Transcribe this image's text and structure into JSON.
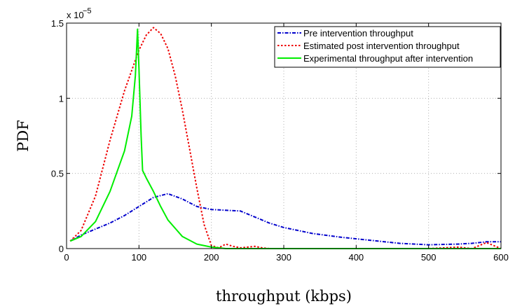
{
  "chart_data": {
    "type": "line",
    "title": "",
    "xlabel": "throughput (kbps)",
    "ylabel": "PDF",
    "y_multiplier": "x 10",
    "y_exponent": "−5",
    "xlim": [
      0,
      600
    ],
    "ylim": [
      0,
      1.5
    ],
    "xticks": [
      "0",
      "100",
      "200",
      "300",
      "400",
      "500",
      "600"
    ],
    "yticks": [
      "0",
      "0.5",
      "1",
      "1.5"
    ],
    "grid": true,
    "legend_position": "top-right",
    "series": [
      {
        "name": "Pre intervention throughput",
        "color": "#0000cc",
        "style": "dashdot",
        "x": [
          5,
          20,
          40,
          60,
          80,
          100,
          120,
          140,
          160,
          180,
          200,
          220,
          240,
          260,
          280,
          300,
          340,
          380,
          420,
          460,
          500,
          540,
          560,
          580,
          600
        ],
        "y": [
          0.05,
          0.09,
          0.13,
          0.17,
          0.22,
          0.28,
          0.34,
          0.365,
          0.33,
          0.28,
          0.26,
          0.255,
          0.25,
          0.21,
          0.17,
          0.14,
          0.1,
          0.075,
          0.055,
          0.035,
          0.025,
          0.03,
          0.035,
          0.045,
          0.045
        ]
      },
      {
        "name": "Estimated post intervention throughput",
        "color": "#ee0000",
        "style": "dotted",
        "x": [
          5,
          20,
          40,
          60,
          80,
          100,
          110,
          120,
          130,
          140,
          150,
          160,
          170,
          180,
          190,
          200,
          210,
          220,
          230,
          240,
          260,
          270,
          280,
          300,
          400,
          500,
          540,
          560,
          580,
          600
        ],
        "y": [
          0.05,
          0.12,
          0.35,
          0.72,
          1.05,
          1.32,
          1.42,
          1.47,
          1.43,
          1.33,
          1.15,
          0.92,
          0.66,
          0.4,
          0.16,
          0.02,
          0.005,
          0.03,
          0.015,
          0.005,
          0.015,
          0.005,
          0.0,
          0.0,
          0.0,
          0.0,
          0.01,
          0.0,
          0.04,
          0.0
        ]
      },
      {
        "name": "Experimental throughput after intervention",
        "color": "#00ee00",
        "style": "solid",
        "x": [
          5,
          20,
          40,
          60,
          80,
          90,
          95,
          98,
          100,
          103,
          105,
          110,
          120,
          130,
          140,
          160,
          180,
          200,
          220,
          250,
          300,
          400,
          500,
          600
        ],
        "y": [
          0.05,
          0.08,
          0.18,
          0.38,
          0.65,
          0.88,
          1.15,
          1.46,
          1.2,
          0.75,
          0.52,
          0.47,
          0.38,
          0.28,
          0.19,
          0.08,
          0.03,
          0.01,
          0.0,
          0.0,
          0.0,
          0.0,
          0.0,
          0.0
        ]
      }
    ]
  }
}
